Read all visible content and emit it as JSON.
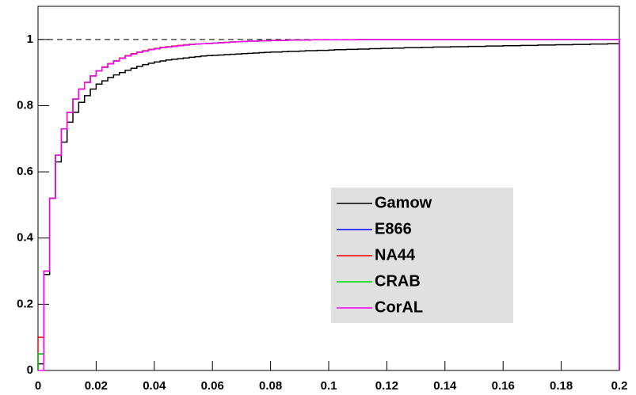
{
  "chart_data": {
    "type": "histogram",
    "bins": [
      0,
      0.002,
      0.004,
      0.006,
      0.008,
      0.01,
      0.012,
      0.014,
      0.016,
      0.018,
      0.02,
      0.022,
      0.024,
      0.026,
      0.028,
      0.03,
      0.032,
      0.034,
      0.036,
      0.038,
      0.04,
      0.042,
      0.044,
      0.046,
      0.048,
      0.05,
      0.052,
      0.054,
      0.056,
      0.058,
      0.06,
      0.062,
      0.064,
      0.066,
      0.068,
      0.07,
      0.072,
      0.074,
      0.076,
      0.078,
      0.08,
      0.082,
      0.084,
      0.086,
      0.088,
      0.09,
      0.092,
      0.094,
      0.096,
      0.098,
      0.1,
      0.102,
      0.104,
      0.106,
      0.108,
      0.11,
      0.112,
      0.114,
      0.116,
      0.118,
      0.12,
      0.122,
      0.124,
      0.126,
      0.128,
      0.13,
      0.132,
      0.134,
      0.136,
      0.138,
      0.14,
      0.142,
      0.144,
      0.146,
      0.148,
      0.15,
      0.152,
      0.154,
      0.156,
      0.158,
      0.16,
      0.162,
      0.164,
      0.166,
      0.168,
      0.17,
      0.172,
      0.174,
      0.176,
      0.178,
      0.18,
      0.182,
      0.184,
      0.186,
      0.188,
      0.19,
      0.192,
      0.194,
      0.196,
      0.198,
      0.2
    ],
    "series": [
      {
        "name": "Gamow",
        "color": "#000000",
        "values": [
          0.02,
          0.29,
          0.52,
          0.63,
          0.69,
          0.75,
          0.78,
          0.81,
          0.83,
          0.85,
          0.865,
          0.875,
          0.885,
          0.893,
          0.9,
          0.907,
          0.913,
          0.919,
          0.924,
          0.928,
          0.932,
          0.935,
          0.938,
          0.94,
          0.942,
          0.944,
          0.946,
          0.948,
          0.95,
          0.951,
          0.952,
          0.953,
          0.954,
          0.955,
          0.956,
          0.957,
          0.958,
          0.959,
          0.96,
          0.961,
          0.962,
          0.962,
          0.963,
          0.964,
          0.964,
          0.965,
          0.966,
          0.966,
          0.967,
          0.967,
          0.968,
          0.969,
          0.969,
          0.97,
          0.97,
          0.971,
          0.971,
          0.972,
          0.972,
          0.973,
          0.973,
          0.974,
          0.974,
          0.975,
          0.975,
          0.975,
          0.976,
          0.976,
          0.977,
          0.977,
          0.977,
          0.978,
          0.978,
          0.978,
          0.979,
          0.979,
          0.979,
          0.98,
          0.98,
          0.98,
          0.981,
          0.981,
          0.981,
          0.982,
          0.982,
          0.982,
          0.983,
          0.983,
          0.983,
          0.984,
          0.984,
          0.984,
          0.985,
          0.985,
          0.985,
          0.986,
          0.986,
          0.986,
          0.987,
          0.987
        ]
      },
      {
        "name": "E866",
        "color": "#0000ff",
        "values": [
          0.05,
          0.3,
          0.52,
          0.65,
          0.73,
          0.78,
          0.82,
          0.85,
          0.87,
          0.89,
          0.905,
          0.916,
          0.926,
          0.935,
          0.943,
          0.95,
          0.956,
          0.961,
          0.965,
          0.969,
          0.972,
          0.975,
          0.977,
          0.979,
          0.981,
          0.983,
          0.985,
          0.986,
          0.987,
          0.988,
          0.989,
          0.99,
          0.991,
          0.992,
          0.993,
          0.994,
          0.995,
          0.995,
          0.996,
          0.996,
          0.997,
          0.997,
          0.997,
          0.998,
          0.998,
          0.998,
          0.998,
          0.999,
          0.999,
          0.999,
          0.999,
          0.999,
          0.999,
          0.999,
          0.999,
          1,
          1,
          1,
          1,
          1,
          1,
          1,
          1,
          1,
          1,
          1,
          1,
          1,
          1,
          1,
          1,
          1,
          1,
          1,
          1,
          1,
          1,
          1,
          1,
          1,
          1,
          1,
          1,
          1,
          1,
          1,
          1,
          1,
          1,
          1,
          1,
          1,
          1,
          1,
          1,
          1,
          1,
          1,
          1,
          1
        ]
      },
      {
        "name": "NA44",
        "color": "#ff0000",
        "values": [
          0.1,
          0.3,
          0.52,
          0.65,
          0.73,
          0.78,
          0.82,
          0.85,
          0.87,
          0.89,
          0.905,
          0.917,
          0.927,
          0.936,
          0.944,
          0.951,
          0.957,
          0.962,
          0.966,
          0.97,
          0.973,
          0.976,
          0.978,
          0.98,
          0.982,
          0.984,
          0.985,
          0.986,
          0.987,
          0.988,
          0.989,
          0.99,
          0.991,
          0.992,
          0.993,
          0.994,
          0.995,
          0.995,
          0.996,
          0.996,
          0.997,
          0.997,
          0.997,
          0.998,
          0.998,
          0.998,
          0.998,
          0.999,
          0.999,
          0.999,
          0.999,
          0.999,
          0.999,
          0.999,
          0.999,
          1,
          1,
          1,
          1,
          1,
          1,
          1,
          1,
          1,
          1,
          1,
          1,
          1,
          1,
          1,
          1,
          1,
          1,
          1,
          1,
          1,
          1,
          1,
          1,
          1,
          1,
          1,
          1,
          1,
          1,
          1,
          1,
          1,
          1,
          1,
          1,
          1,
          1,
          1,
          1,
          1,
          1,
          1,
          1,
          1
        ]
      },
      {
        "name": "CRAB",
        "color": "#00dd00",
        "values": [
          0.05,
          0.3,
          0.52,
          0.65,
          0.73,
          0.78,
          0.82,
          0.85,
          0.87,
          0.89,
          0.905,
          0.916,
          0.926,
          0.935,
          0.943,
          0.95,
          0.956,
          0.961,
          0.965,
          0.969,
          0.972,
          0.975,
          0.977,
          0.979,
          0.981,
          0.983,
          0.985,
          0.986,
          0.987,
          0.988,
          0.989,
          0.99,
          0.991,
          0.992,
          0.993,
          0.994,
          0.995,
          0.995,
          0.996,
          0.996,
          0.997,
          0.997,
          0.997,
          0.998,
          0.998,
          0.998,
          0.998,
          0.999,
          0.999,
          0.999,
          0.999,
          0.999,
          0.999,
          0.999,
          0.999,
          1,
          1,
          1,
          1,
          1,
          1,
          1,
          1,
          1,
          1,
          1,
          1,
          1,
          1,
          1,
          1,
          1,
          1,
          1,
          1,
          1,
          1,
          1,
          1,
          1,
          1,
          1,
          1,
          1,
          1,
          1,
          1,
          1,
          1,
          1,
          1,
          1,
          1,
          1,
          1,
          1,
          1,
          1,
          1,
          1
        ]
      },
      {
        "name": "CorAL",
        "color": "#ff00ff",
        "values": [
          0,
          0.3,
          0.52,
          0.65,
          0.73,
          0.78,
          0.82,
          0.85,
          0.87,
          0.89,
          0.905,
          0.916,
          0.926,
          0.935,
          0.943,
          0.95,
          0.956,
          0.961,
          0.965,
          0.969,
          0.972,
          0.975,
          0.977,
          0.979,
          0.981,
          0.983,
          0.985,
          0.986,
          0.987,
          0.988,
          0.989,
          0.99,
          0.991,
          0.992,
          0.993,
          0.994,
          0.995,
          0.995,
          0.996,
          0.996,
          0.997,
          0.997,
          0.997,
          0.998,
          0.998,
          0.998,
          0.998,
          0.999,
          0.999,
          0.999,
          0.999,
          0.999,
          0.999,
          0.999,
          0.999,
          1,
          1,
          1,
          1,
          1,
          1,
          1,
          1,
          1,
          1,
          1,
          1,
          1,
          1,
          1,
          1,
          1,
          1,
          1,
          1,
          1,
          1,
          1,
          1,
          1,
          1,
          1,
          1,
          1,
          1,
          1,
          1,
          1,
          1,
          1,
          1,
          1,
          1,
          1,
          1,
          1,
          1,
          1,
          1,
          1
        ]
      }
    ],
    "xlim": [
      0,
      0.2
    ],
    "xticks": [
      0,
      0.02,
      0.04,
      0.06,
      0.08,
      0.1,
      0.12,
      0.14,
      0.16,
      0.18,
      0.2
    ],
    "ylim": [
      0,
      1.1
    ],
    "yticks": [
      0,
      0.2,
      0.4,
      0.6,
      0.8,
      1
    ],
    "reference_line": 1,
    "legend": "lower right"
  }
}
